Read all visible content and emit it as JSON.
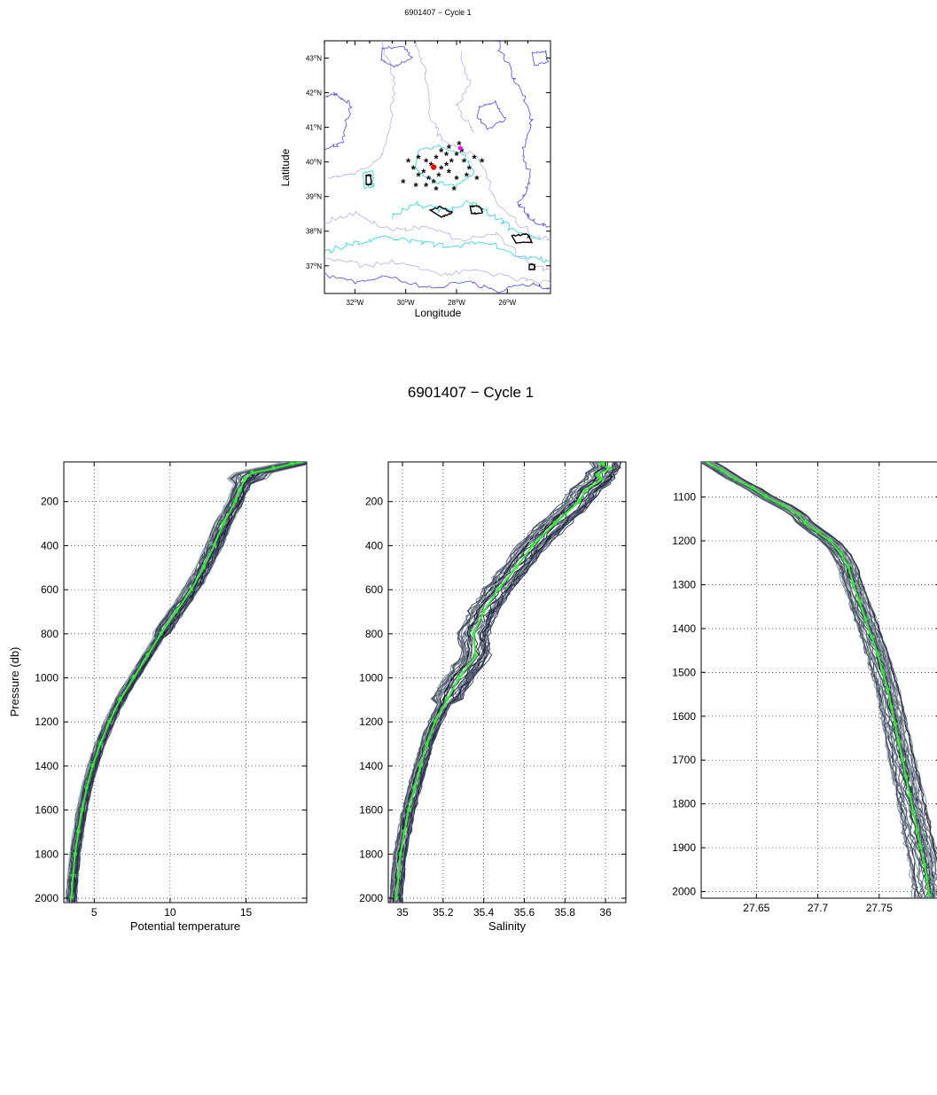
{
  "map": {
    "title": "6901407 − Cycle 1",
    "xlabel": "Longitude",
    "ylabel": "Latitude",
    "lat_ticks": [
      {
        "v": 43,
        "t": "43"
      },
      {
        "v": 42,
        "t": "42"
      },
      {
        "v": 41,
        "t": "41"
      },
      {
        "v": 40,
        "t": "40"
      },
      {
        "v": 39,
        "t": "39"
      },
      {
        "v": 38,
        "t": "38"
      },
      {
        "v": 37,
        "t": "37"
      }
    ],
    "lat_suffix": "N",
    "lon_ticks": [
      {
        "v": -32,
        "t": "32"
      },
      {
        "v": -30,
        "t": "30"
      },
      {
        "v": -28,
        "t": "28"
      },
      {
        "v": -26,
        "t": "26"
      }
    ],
    "lon_suffix": "W",
    "xlim": [
      -33.2,
      -24.3
    ],
    "ylim": [
      36.2,
      43.5
    ],
    "colors": {
      "contour_light": "#b3b3e6",
      "contour_blue": "#4a4ad6",
      "contour_cyan": "#3fd9d9",
      "seamount": "#000000",
      "historical": "#000000",
      "float_position": "#ff0000",
      "other": "#ff00ff"
    },
    "historical_stations": [
      [
        -29.9,
        40.0
      ],
      [
        -29.7,
        39.8
      ],
      [
        -29.5,
        40.1
      ],
      [
        -29.2,
        40.0
      ],
      [
        -29.0,
        39.9
      ],
      [
        -28.8,
        40.1
      ],
      [
        -28.6,
        40.3
      ],
      [
        -28.4,
        40.2
      ],
      [
        -28.2,
        40.0
      ],
      [
        -28.0,
        40.2
      ],
      [
        -27.8,
        40.3
      ],
      [
        -27.7,
        40.0
      ],
      [
        -27.5,
        39.8
      ],
      [
        -27.3,
        40.1
      ],
      [
        -27.0,
        40.0
      ],
      [
        -29.5,
        39.6
      ],
      [
        -29.3,
        39.7
      ],
      [
        -29.1,
        39.5
      ],
      [
        -28.9,
        39.4
      ],
      [
        -28.7,
        39.6
      ],
      [
        -28.3,
        39.7
      ],
      [
        -28.0,
        39.5
      ],
      [
        -27.6,
        39.6
      ],
      [
        -27.2,
        39.5
      ],
      [
        -29.6,
        39.3
      ],
      [
        -29.2,
        39.3
      ],
      [
        -28.6,
        39.8
      ],
      [
        -28.4,
        39.9
      ],
      [
        -30.1,
        39.4
      ],
      [
        -28.8,
        39.2
      ],
      [
        -28.1,
        39.2
      ],
      [
        -27.9,
        40.5
      ],
      [
        -28.3,
        40.4
      ]
    ],
    "float_position": [
      -28.9,
      39.85
    ],
    "other_marker": [
      -27.85,
      40.4
    ]
  },
  "figure_title": "6901407 − Cycle 1",
  "chart_data": [
    {
      "type": "line",
      "xlabel": "Potential temperature",
      "ylabel": "Pressure (db)",
      "xlim": [
        3,
        19
      ],
      "ylim": [
        2020,
        20
      ],
      "xticks": [
        5,
        10,
        15
      ],
      "yticks": [
        200,
        400,
        600,
        800,
        1000,
        1200,
        1400,
        1600,
        1800,
        2000
      ],
      "grid": true,
      "profile_colors": [
        "#1e2238",
        "#2d3350",
        "#3f4660",
        "#525b70",
        "#6a7585",
        "#87969c",
        "#a2b1b5"
      ],
      "float_color": "#33ee33",
      "float_profile": {
        "p": [
          20,
          30,
          50,
          70,
          100,
          150,
          200,
          300,
          400,
          500,
          600,
          700,
          800,
          900,
          1000,
          1100,
          1200,
          1300,
          1400,
          1500,
          1600,
          1700,
          1800,
          1900,
          2000
        ],
        "x": [
          18.7,
          18.0,
          16.8,
          15.4,
          14.9,
          14.6,
          14.3,
          13.5,
          12.9,
          12.2,
          11.4,
          10.4,
          9.4,
          8.5,
          7.6,
          6.7,
          6.0,
          5.4,
          4.9,
          4.5,
          4.2,
          3.95,
          3.75,
          3.6,
          3.5
        ]
      }
    },
    {
      "type": "line",
      "xlabel": "Salinity",
      "ylabel": "",
      "xlim": [
        34.93,
        36.1
      ],
      "ylim": [
        2020,
        20
      ],
      "xticks": [
        35,
        35.2,
        35.4,
        35.6,
        35.8,
        36
      ],
      "yticks": [
        200,
        400,
        600,
        800,
        1000,
        1200,
        1400,
        1600,
        1800,
        2000
      ],
      "grid": true,
      "profile_colors": [
        "#1e2238",
        "#2d3350",
        "#3f4660",
        "#525b70",
        "#6a7585",
        "#87969c",
        "#a2b1b5"
      ],
      "float_color": "#33ee33",
      "float_profile": {
        "p": [
          20,
          30,
          50,
          80,
          100,
          150,
          200,
          300,
          400,
          500,
          600,
          700,
          800,
          900,
          1000,
          1100,
          1200,
          1300,
          1400,
          1500,
          1600,
          1700,
          1800,
          1900,
          2000
        ],
        "x": [
          36.0,
          35.98,
          36.02,
          35.96,
          35.98,
          35.9,
          35.87,
          35.75,
          35.64,
          35.56,
          35.47,
          35.4,
          35.35,
          35.36,
          35.28,
          35.22,
          35.16,
          35.12,
          35.09,
          35.06,
          35.03,
          35.01,
          34.99,
          34.98,
          34.97
        ]
      }
    },
    {
      "type": "line",
      "xlabel": "",
      "ylabel": "",
      "xlim": [
        27.605,
        27.8
      ],
      "ylim": [
        2015,
        1020
      ],
      "xticks": [
        27.65,
        27.7,
        27.75
      ],
      "yticks": [
        1100,
        1200,
        1300,
        1400,
        1500,
        1600,
        1700,
        1800,
        1900,
        2000
      ],
      "grid": true,
      "profile_colors": [
        "#1e2238",
        "#2d3350",
        "#3f4660",
        "#525b70",
        "#6a7585",
        "#87969c",
        "#a2b1b5"
      ],
      "float_color": "#33ee33",
      "float_profile": {
        "p": [
          1020,
          1040,
          1060,
          1080,
          1100,
          1120,
          1140,
          1160,
          1180,
          1200,
          1230,
          1260,
          1300,
          1340,
          1380,
          1420,
          1460,
          1500,
          1540,
          1580,
          1620,
          1660,
          1700,
          1740,
          1780,
          1820,
          1860,
          1900,
          1940,
          1970,
          2010
        ],
        "x": [
          27.61,
          27.622,
          27.633,
          27.647,
          27.658,
          27.672,
          27.684,
          27.69,
          27.7,
          27.71,
          27.719,
          27.725,
          27.729,
          27.734,
          27.739,
          27.744,
          27.749,
          27.753,
          27.757,
          27.76,
          27.763,
          27.766,
          27.769,
          27.772,
          27.775,
          27.778,
          27.781,
          27.784,
          27.787,
          27.789,
          27.791
        ]
      }
    }
  ]
}
